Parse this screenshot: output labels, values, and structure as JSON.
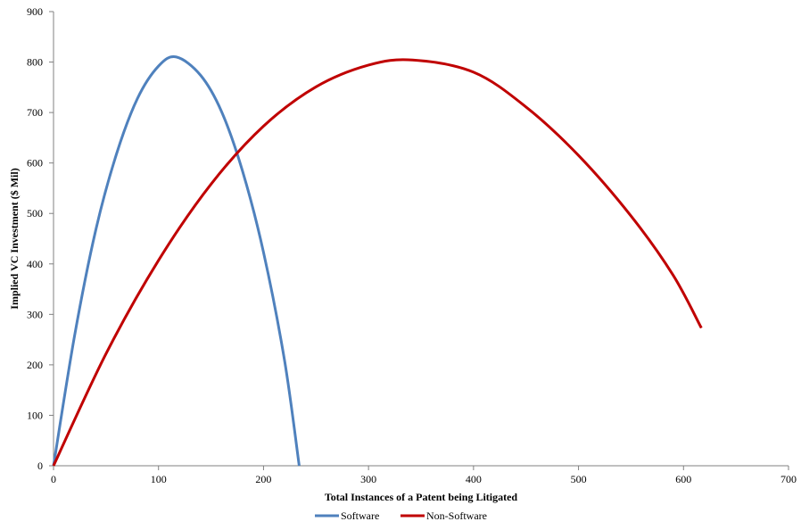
{
  "chart_data": {
    "type": "line",
    "xlabel": "Total Instances of a Patent being Litigated",
    "ylabel": "Implied VC Investment ($ Mil)",
    "xlim": [
      0,
      700
    ],
    "ylim": [
      0,
      900
    ],
    "x_ticks": [
      0,
      100,
      200,
      300,
      400,
      500,
      600,
      700
    ],
    "y_ticks": [
      0,
      100,
      200,
      300,
      400,
      500,
      600,
      700,
      800,
      900
    ],
    "grid": false,
    "legend_position": "bottom",
    "series": [
      {
        "name": "Software",
        "color": "#4f81bd",
        "x": [
          0,
          20,
          40,
          60,
          80,
          100,
          117,
          140,
          160,
          180,
          200,
          220,
          234
        ],
        "y": [
          0,
          257,
          465,
          618,
          728,
          792,
          810,
          774,
          702,
          584,
          423,
          209,
          0
        ]
      },
      {
        "name": "Non-Software",
        "color": "#c00000",
        "x": [
          0,
          50,
          100,
          150,
          200,
          250,
          300,
          342,
          400,
          450,
          500,
          550,
          590,
          617
        ],
        "y": [
          0,
          222,
          407,
          558,
          673,
          751,
          794,
          804,
          780,
          711,
          615,
          495,
          378,
          273
        ]
      }
    ]
  }
}
